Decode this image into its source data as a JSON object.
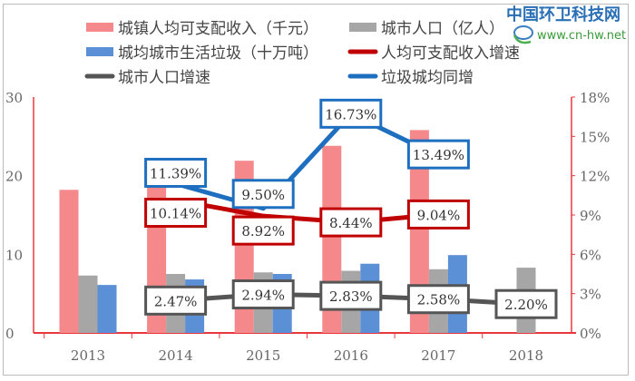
{
  "chart_data": {
    "type": "bar+line",
    "categories": [
      "2013",
      "2014",
      "2015",
      "2016",
      "2017",
      "2018"
    ],
    "left_axis": {
      "ylim": [
        0,
        30
      ],
      "ticks": [
        "0",
        "10",
        "20",
        "30"
      ]
    },
    "right_axis": {
      "ylim": [
        0,
        18
      ],
      "ticks": [
        "0%",
        "3%",
        "6%",
        "9%",
        "12%",
        "15%",
        "18%"
      ]
    },
    "grid": false,
    "legend_position": "top",
    "bar_series": [
      {
        "name": "城镇人均可支配收入（千元）",
        "color": "#f4888a",
        "values": [
          18.2,
          20.1,
          21.9,
          23.8,
          25.8,
          null
        ]
      },
      {
        "name": "城市人口（亿人）",
        "color": "#a6a6a6",
        "values": [
          7.3,
          7.5,
          7.7,
          7.9,
          8.1,
          8.3
        ]
      },
      {
        "name": "城均城市生活垃圾（十万吨）",
        "color": "#5b8fd6",
        "values": [
          6.1,
          6.8,
          7.5,
          8.8,
          9.9,
          null
        ]
      }
    ],
    "line_series": [
      {
        "name": "人均可支配收入增速",
        "color": "#c00000",
        "values": [
          null,
          10.14,
          8.92,
          8.44,
          9.04,
          null
        ],
        "labels": [
          "",
          "10.14%",
          "8.92%",
          "8.44%",
          "9.04%",
          ""
        ]
      },
      {
        "name": "城市人口增速",
        "color": "#555555",
        "values": [
          null,
          2.47,
          2.94,
          2.83,
          2.58,
          2.2
        ],
        "labels": [
          "",
          "2.47%",
          "2.94%",
          "2.83%",
          "2.58%",
          "2.20%"
        ]
      },
      {
        "name": "垃圾城均同增",
        "color": "#1f6fc0",
        "values": [
          null,
          11.39,
          9.5,
          16.73,
          13.49,
          null
        ],
        "labels": [
          "",
          "11.39%",
          "9.50%",
          "16.73%",
          "13.49%",
          ""
        ]
      }
    ]
  },
  "watermark": {
    "name": "中国环卫科技网",
    "url": "www.cn-hw.net"
  }
}
